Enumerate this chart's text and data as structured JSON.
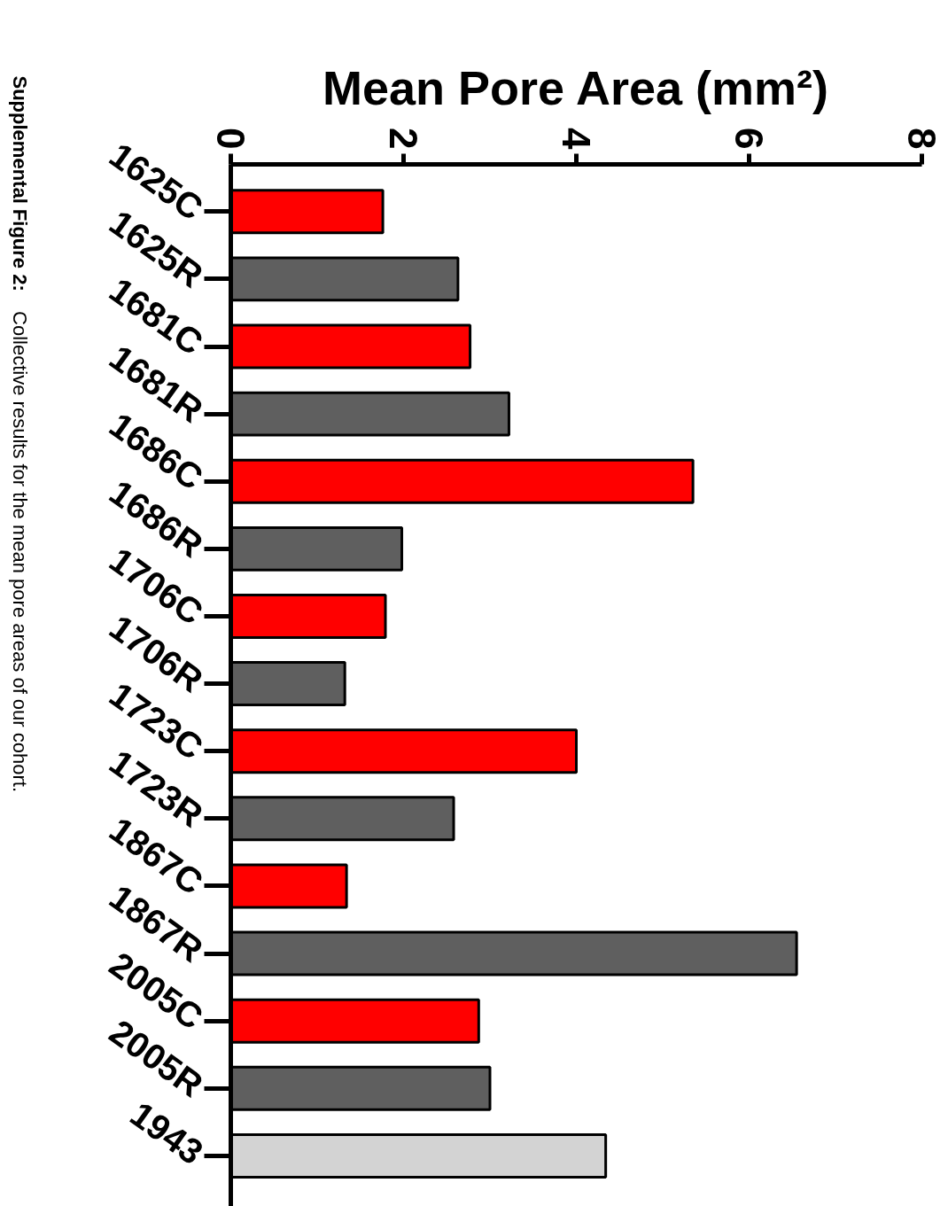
{
  "chart_data": {
    "type": "bar",
    "orientation": "horizontal",
    "xlabel": "Mean Pore Area (mm²)",
    "categories": [
      "1625C",
      "1625R",
      "1681C",
      "1681R",
      "1686C",
      "1686R",
      "1706C",
      "1706R",
      "1723C",
      "1723R",
      "1867C",
      "1867R",
      "2005C",
      "2005R",
      "1943"
    ],
    "values": [
      1.76,
      2.63,
      2.77,
      3.22,
      5.35,
      1.98,
      1.79,
      1.32,
      4.0,
      2.58,
      1.34,
      6.55,
      2.87,
      3.0,
      4.34
    ],
    "colors": [
      "#ff0000",
      "#5f5f5f",
      "#ff0000",
      "#5f5f5f",
      "#ff0000",
      "#5f5f5f",
      "#ff0000",
      "#5f5f5f",
      "#ff0000",
      "#5f5f5f",
      "#ff0000",
      "#5f5f5f",
      "#ff0000",
      "#5f5f5f",
      "#d3d3d3"
    ],
    "xlim": [
      0,
      8
    ],
    "xticks": [
      0,
      2,
      4,
      6,
      8
    ],
    "annotations": [
      "Supplemental Figure 2:",
      "Collective results for the mean pore areas of our cohort."
    ]
  }
}
